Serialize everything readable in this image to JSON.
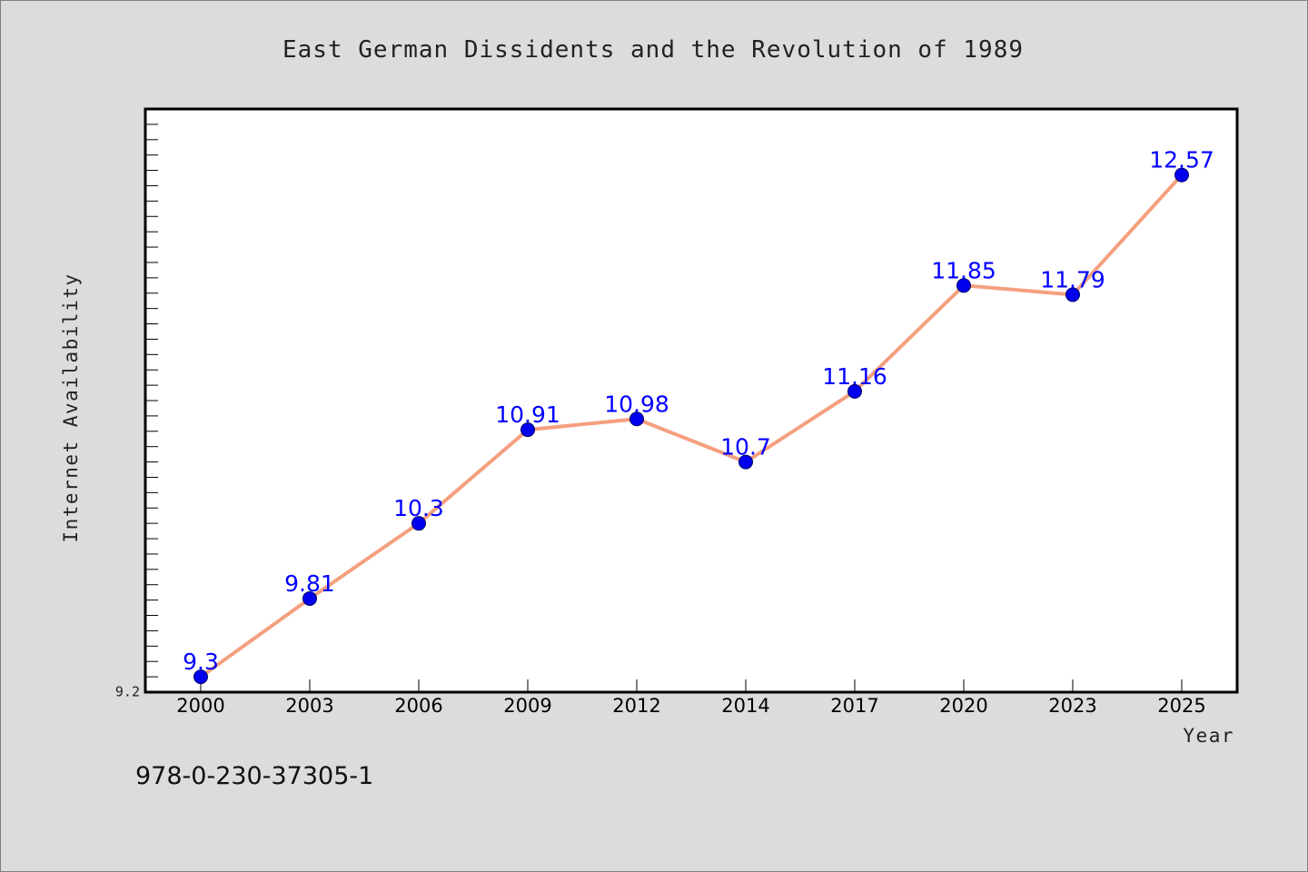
{
  "chart_data": {
    "type": "line",
    "title": "East German Dissidents and the Revolution of 1989",
    "xlabel": "Year",
    "ylabel": "Internet Availability",
    "categories": [
      "2000",
      "2003",
      "2006",
      "2009",
      "2012",
      "2014",
      "2017",
      "2020",
      "2023",
      "2025"
    ],
    "series": [
      {
        "values": [
          9.3,
          9.81,
          10.3,
          10.91,
          10.98,
          10.7,
          11.16,
          11.85,
          11.79,
          12.57
        ]
      }
    ],
    "data_labels": [
      "9.3",
      "9.81",
      "10.3",
      "10.91",
      "10.98",
      "10.7",
      "11.16",
      "11.85",
      "11.79",
      "12.57"
    ],
    "ytick_labels": [
      "9.2"
    ],
    "ylim": [
      9.2,
      13.0
    ],
    "grid": false,
    "colors": {
      "line": "#f4a07f",
      "marker_fill": "#0000ee",
      "marker_stroke": "#000066",
      "data_label": "#0000ff",
      "plot_background": "#ffffff",
      "figure_background": "#dcdcdc"
    }
  },
  "footnote": "978-0-230-37305-1"
}
